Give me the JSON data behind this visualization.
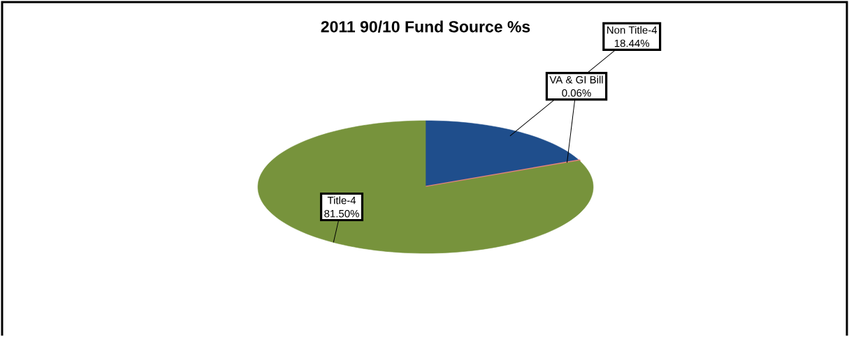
{
  "chart_data": {
    "type": "pie",
    "title": "2011  90/10 Fund Source %s",
    "categories": [
      "Non Title-4",
      "VA & GI Bill",
      "Title-4"
    ],
    "values": [
      18.44,
      0.06,
      81.5
    ],
    "value_labels": [
      "18.44%",
      "0.06%",
      "81.50%"
    ],
    "colors": [
      "#1f4e8c",
      "#e8837f",
      "#77933c"
    ]
  }
}
